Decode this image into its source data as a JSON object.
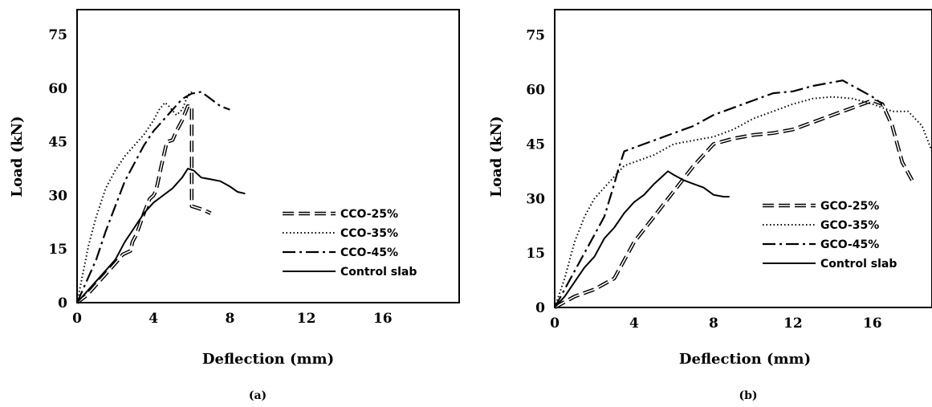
{
  "chart_data": [
    {
      "type": "line",
      "caption": "(a)",
      "xlabel": "Deflection (mm)",
      "ylabel": "Load (kN)",
      "xlim": [
        0,
        20
      ],
      "ylim": [
        0,
        82
      ],
      "xticks": [
        0,
        4,
        8,
        12,
        16
      ],
      "yticks": [
        0,
        15,
        30,
        45,
        60,
        75
      ],
      "grid": false,
      "legend_position": "bottom-right",
      "series": [
        {
          "name": "CCO-25%",
          "style": "double-dash",
          "color": "#000000",
          "points": [
            [
              0,
              0
            ],
            [
              0.5,
              2
            ],
            [
              1,
              5
            ],
            [
              1.5,
              8
            ],
            [
              2,
              11
            ],
            [
              2.4,
              13.5
            ],
            [
              2.8,
              14.5
            ],
            [
              2.9,
              17
            ],
            [
              3.1,
              19
            ],
            [
              3.5,
              25
            ],
            [
              3.8,
              29
            ],
            [
              4.0,
              30
            ],
            [
              4.1,
              31
            ],
            [
              4.2,
              33
            ],
            [
              4.4,
              38
            ],
            [
              4.7,
              45
            ],
            [
              5.0,
              45.5
            ],
            [
              5.2,
              48
            ],
            [
              5.5,
              51
            ],
            [
              5.8,
              55
            ],
            [
              6.0,
              55
            ],
            [
              6.0,
              45
            ],
            [
              6.0,
              30
            ],
            [
              6.0,
              27
            ],
            [
              6.6,
              26
            ],
            [
              7.0,
              25
            ]
          ]
        },
        {
          "name": "CCO-35%",
          "style": "dotted",
          "color": "#000000",
          "points": [
            [
              0,
              0
            ],
            [
              0.3,
              8
            ],
            [
              0.6,
              16
            ],
            [
              1.0,
              24
            ],
            [
              1.5,
              32
            ],
            [
              2.0,
              37
            ],
            [
              2.5,
              41
            ],
            [
              3.0,
              44
            ],
            [
              3.5,
              47
            ],
            [
              4.0,
              51
            ],
            [
              4.3,
              54
            ],
            [
              4.6,
              56
            ],
            [
              4.8,
              55
            ],
            [
              5.2,
              52.5
            ],
            [
              5.5,
              54
            ],
            [
              5.8,
              58
            ],
            [
              6.0,
              59
            ]
          ]
        },
        {
          "name": "CCO-45%",
          "style": "dash-dot",
          "color": "#000000",
          "points": [
            [
              0,
              0
            ],
            [
              0.5,
              6
            ],
            [
              1.0,
              12
            ],
            [
              1.5,
              20
            ],
            [
              2.0,
              27
            ],
            [
              2.5,
              34
            ],
            [
              3.0,
              39
            ],
            [
              3.5,
              44
            ],
            [
              4.0,
              48
            ],
            [
              4.5,
              51
            ],
            [
              5.0,
              54
            ],
            [
              5.5,
              57
            ],
            [
              6.0,
              58.5
            ],
            [
              6.5,
              59
            ],
            [
              7.0,
              57
            ],
            [
              7.5,
              55
            ],
            [
              8.0,
              54
            ]
          ]
        },
        {
          "name": "Control slab",
          "style": "solid",
          "color": "#000000",
          "points": [
            [
              0,
              0
            ],
            [
              0.5,
              3
            ],
            [
              1.0,
              6
            ],
            [
              1.5,
              9
            ],
            [
              2.0,
              12
            ],
            [
              2.5,
              17
            ],
            [
              3.0,
              21
            ],
            [
              3.5,
              25
            ],
            [
              4.0,
              28
            ],
            [
              4.5,
              30
            ],
            [
              5.0,
              32
            ],
            [
              5.5,
              35
            ],
            [
              5.8,
              37.5
            ],
            [
              6.1,
              37
            ],
            [
              6.5,
              35
            ],
            [
              7.0,
              34.5
            ],
            [
              7.5,
              34
            ],
            [
              8.0,
              32.5
            ],
            [
              8.4,
              31
            ],
            [
              8.8,
              30.5
            ]
          ]
        }
      ]
    },
    {
      "type": "line",
      "caption": "(b)",
      "xlabel": "Deflection (mm)",
      "ylabel": "Load (kN)",
      "xlim": [
        0,
        19
      ],
      "ylim": [
        0,
        82
      ],
      "xticks": [
        0,
        4,
        8,
        12,
        16
      ],
      "yticks": [
        0,
        15,
        30,
        45,
        60,
        75
      ],
      "grid": false,
      "legend_position": "bottom-right",
      "series": [
        {
          "name": "GCO-25%",
          "style": "double-dash",
          "color": "#000000",
          "points": [
            [
              0,
              0
            ],
            [
              1,
              3
            ],
            [
              2,
              5
            ],
            [
              3,
              8
            ],
            [
              3.5,
              13
            ],
            [
              4,
              18
            ],
            [
              5,
              25
            ],
            [
              6,
              32
            ],
            [
              7,
              39
            ],
            [
              8,
              45
            ],
            [
              9,
              46.5
            ],
            [
              10,
              47.5
            ],
            [
              11,
              48
            ],
            [
              12,
              49
            ],
            [
              13,
              51
            ],
            [
              14,
              53
            ],
            [
              15,
              55
            ],
            [
              16,
              57
            ],
            [
              16.5,
              56
            ],
            [
              17,
              50
            ],
            [
              17.5,
              40
            ],
            [
              18,
              35
            ]
          ]
        },
        {
          "name": "GCO-35%",
          "style": "dotted",
          "color": "#000000",
          "points": [
            [
              0,
              0
            ],
            [
              0.5,
              8
            ],
            [
              1,
              18
            ],
            [
              1.5,
              25
            ],
            [
              2,
              30
            ],
            [
              2.5,
              33
            ],
            [
              3,
              36
            ],
            [
              3.5,
              39
            ],
            [
              4,
              40
            ],
            [
              5,
              42
            ],
            [
              6,
              45
            ],
            [
              7,
              46
            ],
            [
              8,
              47
            ],
            [
              9,
              49
            ],
            [
              10,
              52
            ],
            [
              11,
              54
            ],
            [
              12,
              56
            ],
            [
              13,
              57.5
            ],
            [
              14,
              58
            ],
            [
              15,
              57.5
            ],
            [
              16,
              56
            ],
            [
              17,
              54
            ],
            [
              17.8,
              54
            ],
            [
              18.5,
              50
            ],
            [
              19,
              43
            ]
          ]
        },
        {
          "name": "GCO-45%",
          "style": "dash-dot",
          "color": "#000000",
          "points": [
            [
              0,
              0
            ],
            [
              0.5,
              5
            ],
            [
              1,
              10
            ],
            [
              1.5,
              15
            ],
            [
              2,
              20
            ],
            [
              2.5,
              25
            ],
            [
              3,
              34
            ],
            [
              3.2,
              38
            ],
            [
              3.5,
              43
            ],
            [
              4,
              44
            ],
            [
              5,
              46
            ],
            [
              6,
              48
            ],
            [
              7,
              50
            ],
            [
              8,
              53
            ],
            [
              9,
              55
            ],
            [
              10,
              57
            ],
            [
              11,
              59
            ],
            [
              12,
              59.5
            ],
            [
              13,
              61
            ],
            [
              14,
              62
            ],
            [
              14.5,
              62.5
            ],
            [
              15,
              61
            ],
            [
              16,
              58
            ],
            [
              16.5,
              56
            ]
          ]
        },
        {
          "name": "Control slab",
          "style": "solid",
          "color": "#000000",
          "points": [
            [
              0,
              0
            ],
            [
              0.5,
              3
            ],
            [
              1,
              7
            ],
            [
              1.5,
              11
            ],
            [
              2,
              14
            ],
            [
              2.5,
              19
            ],
            [
              3,
              22
            ],
            [
              3.5,
              26
            ],
            [
              4,
              29
            ],
            [
              4.5,
              31
            ],
            [
              5,
              34
            ],
            [
              5.5,
              36.5
            ],
            [
              5.7,
              37.5
            ],
            [
              6,
              36.5
            ],
            [
              6.5,
              35
            ],
            [
              7,
              34
            ],
            [
              7.5,
              33
            ],
            [
              8,
              31
            ],
            [
              8.5,
              30.5
            ],
            [
              8.8,
              30.5
            ]
          ]
        }
      ]
    }
  ]
}
